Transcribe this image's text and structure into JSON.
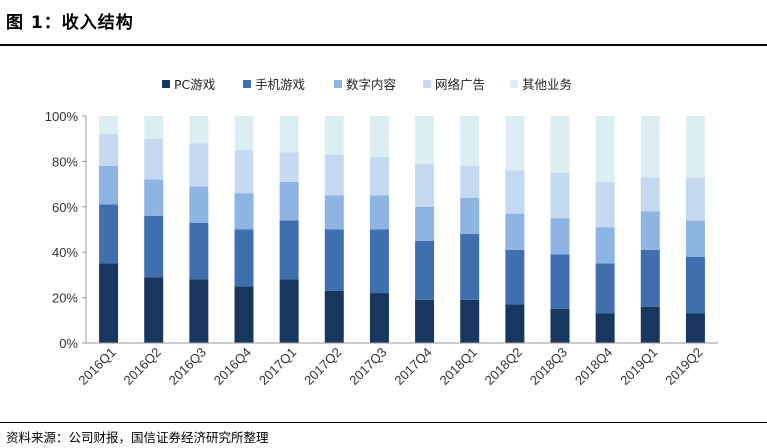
{
  "figure": {
    "title": "图 1：收入结构",
    "source": "资料来源：公司财报，国信证券经济研究所整理"
  },
  "chart_data": {
    "type": "bar",
    "stacked": true,
    "categories": [
      "2016Q1",
      "2016Q2",
      "2016Q3",
      "2016Q4",
      "2017Q1",
      "2017Q2",
      "2017Q3",
      "2017Q4",
      "2018Q1",
      "2018Q2",
      "2018Q3",
      "2018Q4",
      "2019Q1",
      "2019Q2"
    ],
    "series": [
      {
        "name": "PC游戏",
        "color": "#17375e",
        "values": [
          35,
          29,
          28,
          25,
          28,
          23,
          22,
          19,
          19,
          17,
          15,
          13,
          16,
          13
        ]
      },
      {
        "name": "手机游戏",
        "color": "#3f6fae",
        "values": [
          26,
          27,
          25,
          25,
          26,
          27,
          28,
          26,
          29,
          24,
          24,
          22,
          25,
          25
        ]
      },
      {
        "name": "数字内容",
        "color": "#8db4e2",
        "values": [
          17,
          16,
          16,
          16,
          17,
          15,
          15,
          15,
          16,
          16,
          16,
          16,
          17,
          16
        ]
      },
      {
        "name": "网络广告",
        "color": "#c5d9f1",
        "values": [
          14,
          18,
          19,
          19,
          13,
          18,
          17,
          19,
          14,
          19,
          20,
          20,
          15,
          19
        ]
      },
      {
        "name": "其他业务",
        "color": "#daeef3",
        "values": [
          8,
          10,
          12,
          15,
          16,
          17,
          18,
          21,
          22,
          24,
          25,
          29,
          27,
          27
        ]
      }
    ],
    "ylim": [
      0,
      100
    ],
    "yticks": [
      "0%",
      "20%",
      "40%",
      "60%",
      "80%",
      "100%"
    ],
    "legend": "top",
    "grid": false
  }
}
